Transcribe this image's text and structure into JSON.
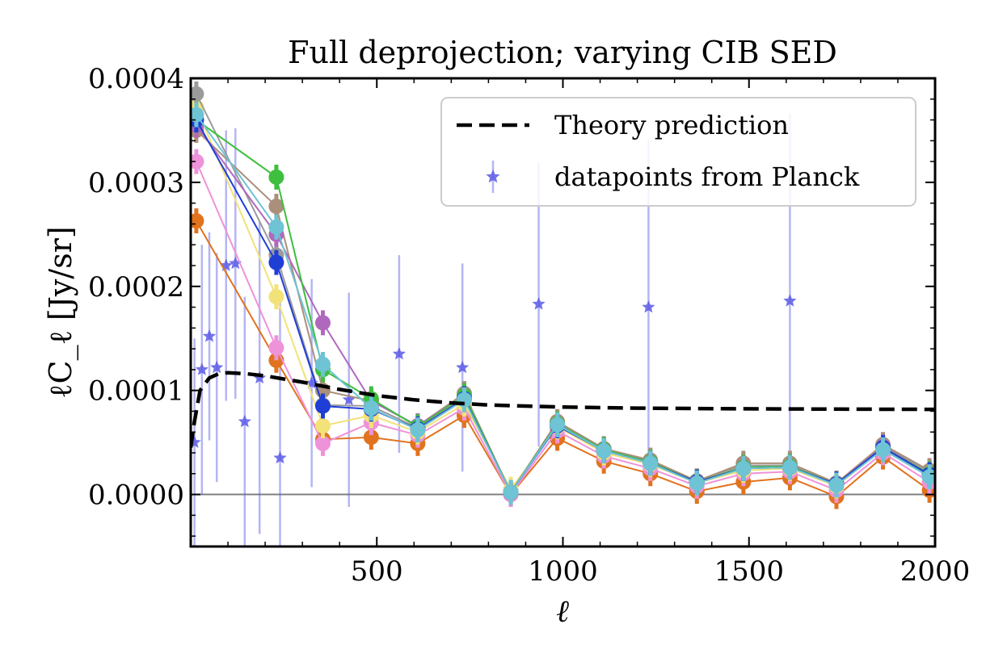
{
  "chart_data": {
    "type": "line",
    "title": "Full deprojection; varying CIB SED",
    "xlabel": "ℓ",
    "ylabel": "ℓC_ℓ [Jy/sr]",
    "xlim": [
      0,
      2000
    ],
    "ylim": [
      -5e-05,
      0.0004
    ],
    "x_ticks": [
      500,
      1000,
      1500,
      2000
    ],
    "x_tick_labels": [
      "500",
      "1000",
      "1500",
      "2000"
    ],
    "y_ticks": [
      0,
      0.0001,
      0.0002,
      0.0003,
      0.0004
    ],
    "y_tick_labels": [
      "0.0000",
      "0.0001",
      "0.0002",
      "0.0003",
      "0.0004"
    ],
    "grid": false,
    "legend": {
      "position": "top-right",
      "entries": [
        "Theory prediction",
        "datapoints from Planck"
      ]
    },
    "theory_prediction": {
      "x": [
        0,
        10,
        25,
        50,
        75,
        100,
        150,
        200,
        250,
        300,
        400,
        500,
        600,
        700,
        800,
        1000,
        1200,
        1400,
        1600,
        1800,
        2000
      ],
      "y": [
        4.5e-05,
        7e-05,
        0.0001,
        0.000112,
        0.000116,
        0.000117,
        0.000116,
        0.000114,
        0.000111,
        0.000108,
        0.000101,
        9.5e-05,
        9.1e-05,
        8.8e-05,
        8.6e-05,
        8.4e-05,
        8.3e-05,
        8.25e-05,
        8.22e-05,
        8.2e-05,
        8.18e-05
      ]
    },
    "planck_points": {
      "x": [
        10,
        30,
        50,
        70,
        95,
        120,
        145,
        185,
        240,
        325,
        425,
        560,
        730,
        935,
        1230,
        1610
      ],
      "y": [
        5e-05,
        0.00012,
        0.000152,
        0.000122,
        0.00022,
        0.000222,
        7e-05,
        0.000112,
        3.5e-05,
        0.000107,
        9.1e-05,
        0.000135,
        0.000122,
        0.000183,
        0.00018,
        0.000186
      ],
      "yerr": [
        0.0001,
        0.00012,
        0.0001,
        0.00011,
        0.00013,
        0.00013,
        0.00012,
        0.00015,
        0.00016,
        0.0001,
        0.000103,
        9.5e-05,
        0.0001,
        0.000137,
        0.00016,
        0.00018
      ]
    },
    "series": [
      {
        "color": "#e1731e",
        "x": [
          15,
          230,
          355,
          485,
          610,
          735,
          860,
          985,
          1110,
          1235,
          1360,
          1485,
          1610,
          1735,
          1860,
          1985
        ],
        "y": [
          0.000263,
          0.000129,
          5.3e-05,
          5.5e-05,
          4.9e-05,
          7.6e-05,
          0.0,
          5.4e-05,
          3.2e-05,
          2e-05,
          3e-06,
          1.2e-05,
          1.6e-05,
          -2e-06,
          3.6e-05,
          4e-06
        ]
      },
      {
        "color": "#ee92d9",
        "x": [
          15,
          230,
          355,
          485,
          610,
          735,
          860,
          985,
          1110,
          1235,
          1360,
          1485,
          1610,
          1735,
          1860,
          1985
        ],
        "y": [
          0.00032,
          0.000141,
          4.9e-05,
          6.9e-05,
          5.7e-05,
          8.3e-05,
          0.0,
          6.1e-05,
          3.7e-05,
          2.5e-05,
          8e-06,
          2e-05,
          2.2e-05,
          4e-06,
          4e-05,
          1.2e-05
        ]
      },
      {
        "color": "#f2e278",
        "x": [
          15,
          230,
          355,
          485,
          610,
          735,
          860,
          985,
          1110,
          1235,
          1360,
          1485,
          1610,
          1735,
          1860,
          1985
        ],
        "y": [
          0.000372,
          0.00019,
          6.6e-05,
          7.6e-05,
          6e-05,
          8.7e-05,
          5e-06,
          6.5e-05,
          4e-05,
          2.9e-05,
          1.1e-05,
          2.3e-05,
          2.5e-05,
          8e-06,
          4.4e-05,
          1.7e-05
        ]
      },
      {
        "color": "#9b9b9b",
        "x": [
          15,
          230,
          355,
          485,
          610,
          735,
          860,
          985,
          1110,
          1235,
          1360,
          1485,
          1610,
          1735,
          1860,
          1985
        ],
        "y": [
          0.000385,
          0.00023,
          8.6e-05,
          8.5e-05,
          6.4e-05,
          9.4e-05,
          2e-06,
          7e-05,
          4.4e-05,
          3.2e-05,
          1.3e-05,
          2.8e-05,
          2.8e-05,
          1.1e-05,
          4.7e-05,
          2.2e-05
        ]
      },
      {
        "color": "#aa8f7a",
        "x": [
          15,
          230,
          355,
          485,
          610,
          735,
          860,
          985,
          1110,
          1235,
          1360,
          1485,
          1610,
          1735,
          1860,
          1985
        ],
        "y": [
          0.00035,
          0.000277,
          0.0001,
          9e-05,
          6.6e-05,
          9.7e-05,
          2e-06,
          7e-05,
          4.4e-05,
          3.3e-05,
          1.3e-05,
          3e-05,
          3e-05,
          1.1e-05,
          4.8e-05,
          2.3e-05
        ]
      },
      {
        "color": "#b068bd",
        "x": [
          15,
          230,
          355,
          485,
          610,
          735,
          860,
          985,
          1110,
          1235,
          1360,
          1485,
          1610,
          1735,
          1860,
          1985
        ],
        "y": [
          0.000355,
          0.00025,
          0.000165,
          9e-05,
          6.6e-05,
          9.5e-05,
          2e-06,
          6.8e-05,
          4.3e-05,
          3.1e-05,
          1.2e-05,
          2.6e-05,
          2.7e-05,
          1e-05,
          4.6e-05,
          2e-05
        ]
      },
      {
        "color": "#3ebf3e",
        "x": [
          15,
          230,
          355,
          485,
          610,
          735,
          860,
          985,
          1110,
          1235,
          1360,
          1485,
          1610,
          1735,
          1860,
          1985
        ],
        "y": [
          0.00036,
          0.000305,
          0.00012,
          9.2e-05,
          6.5e-05,
          9.5e-05,
          2e-06,
          6.8e-05,
          4.3e-05,
          3.1e-05,
          1.2e-05,
          2.6e-05,
          2.7e-05,
          1e-05,
          4.5e-05,
          2e-05
        ]
      },
      {
        "color": "#1f3ed6",
        "x": [
          15,
          230,
          355,
          485,
          610,
          735,
          860,
          985,
          1110,
          1235,
          1360,
          1485,
          1610,
          1735,
          1860,
          1985
        ],
        "y": [
          0.00036,
          0.000223,
          8.5e-05,
          8.2e-05,
          6.3e-05,
          9.2e-05,
          2e-06,
          6.6e-05,
          4.2e-05,
          3e-05,
          1.2e-05,
          2.5e-05,
          2.6e-05,
          1e-05,
          4.5e-05,
          1.9e-05
        ]
      },
      {
        "color": "#6ec3d4",
        "x": [
          15,
          230,
          355,
          485,
          610,
          735,
          860,
          985,
          1110,
          1235,
          1360,
          1485,
          1610,
          1735,
          1860,
          1985
        ],
        "y": [
          0.000365,
          0.000257,
          0.000125,
          8.3e-05,
          6.2e-05,
          9.1e-05,
          2e-06,
          6.7e-05,
          4.2e-05,
          3e-05,
          1.1e-05,
          2.5e-05,
          2.6e-05,
          9e-06,
          4.3e-05,
          1.7e-05
        ]
      }
    ]
  },
  "colors": {
    "theory": "#000000",
    "planck": "#5a5ae6",
    "zero_line": "#808080"
  }
}
